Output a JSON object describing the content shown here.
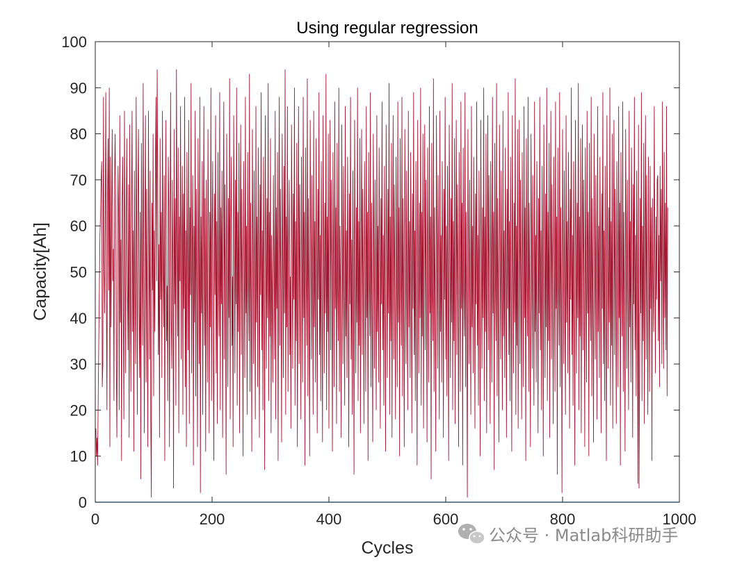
{
  "chart_data": {
    "type": "line",
    "title": "Using regular regression",
    "xlabel": "Cycles",
    "ylabel": "Capacity[Ah]",
    "xlim": [
      0,
      1000
    ],
    "ylim": [
      0,
      100
    ],
    "xticks": [
      0,
      200,
      400,
      600,
      800,
      1000
    ],
    "yticks": [
      0,
      10,
      20,
      30,
      40,
      50,
      60,
      70,
      80,
      90,
      100
    ],
    "grid": false,
    "legend": "none",
    "series": [
      {
        "color": "#a2142f",
        "x_start": 1,
        "x_step": 1,
        "values": [
          16,
          10,
          14,
          8,
          22,
          35,
          46,
          58,
          62,
          70,
          74,
          25,
          30,
          88,
          52,
          41,
          60,
          89,
          45,
          20,
          67,
          79,
          46,
          90,
          12,
          75,
          38,
          62,
          81,
          48,
          55,
          22,
          70,
          80,
          66,
          30,
          14,
          51,
          73,
          62,
          20,
          84,
          39,
          57,
          9,
          66,
          75,
          42,
          18,
          85,
          56,
          28,
          62,
          79,
          47,
          33,
          69,
          14,
          82,
          50,
          24,
          64,
          85,
          37,
          59,
          11,
          72,
          46,
          30,
          88,
          55,
          19,
          66,
          81,
          41,
          27,
          63,
          5,
          78,
          52,
          34,
          91,
          49,
          15,
          60,
          84,
          26,
          68,
          40,
          12,
          85,
          57,
          31,
          72,
          18,
          1,
          65,
          46,
          80,
          23,
          59,
          37,
          74,
          88,
          48,
          94,
          70,
          32,
          56,
          14,
          79,
          44,
          63,
          27,
          85,
          52,
          38,
          71,
          9,
          60,
          83,
          35,
          47,
          22,
          75,
          64,
          12,
          57,
          89,
          40,
          29,
          70,
          51,
          3,
          81,
          43,
          66,
          21,
          94,
          58,
          36,
          77,
          15,
          62,
          48,
          86,
          31,
          54,
          73,
          19,
          67,
          42,
          88,
          25,
          59,
          12,
          76,
          50,
          33,
          83,
          17,
          64,
          45,
          91,
          28,
          55,
          71,
          8,
          60,
          39,
          85,
          23,
          68,
          47,
          12,
          79,
          53,
          30,
          88,
          2,
          62,
          41,
          74,
          19,
          57,
          86,
          34,
          66,
          11,
          70,
          48,
          26,
          81,
          55,
          15,
          63,
          38,
          90,
          22,
          58,
          74,
          33,
          9,
          67,
          45,
          84,
          28,
          61,
          17,
          76,
          50,
          36,
          89,
          20,
          64,
          43,
          72,
          14,
          58,
          87,
          31,
          69,
          47,
          6,
          80,
          53,
          25,
          66,
          40,
          92,
          18,
          61,
          75,
          34,
          49,
          12,
          84,
          57,
          28,
          70,
          43,
          90,
          21,
          63,
          37,
          78,
          15,
          56,
          82,
          32,
          68,
          46,
          10,
          74,
          52,
          27,
          88,
          41,
          60,
          19,
          76,
          49,
          35,
          93,
          24,
          65,
          44,
          11,
          81,
          56,
          30,
          72,
          47,
          18,
          86,
          39,
          62,
          25,
          77,
          51,
          14,
          69,
          45,
          89,
          33,
          59,
          20,
          75,
          48,
          7,
          84,
          55,
          29,
          66,
          40,
          91,
          22,
          63,
          36,
          79,
          15,
          58,
          45,
          26,
          71,
          52,
          31,
          85,
          18,
          64,
          42,
          76,
          9,
          57,
          88,
          34,
          68,
          47,
          13,
          80,
          53,
          27,
          73,
          41,
          94,
          19,
          62,
          38,
          86,
          24,
          55,
          70,
          32,
          49,
          16,
          82,
          58,
          29,
          67,
          44,
          90,
          21,
          61,
          35,
          78,
          12,
          54,
          86,
          30,
          69,
          46,
          18,
          75,
          52,
          26,
          88,
          40,
          63,
          8,
          77,
          50,
          34,
          92,
          23,
          66,
          43,
          10,
          83,
          57,
          31,
          71,
          48,
          19,
          85,
          38,
          61,
          26,
          79,
          53,
          15,
          68,
          44,
          89,
          32,
          58,
          22,
          74,
          47,
          13,
          84,
          54,
          28,
          65,
          41,
          93,
          20,
          62,
          37,
          80,
          16,
          56,
          83,
          33,
          70,
          49,
          11,
          76,
          51,
          25,
          87,
          42,
          64,
          17,
          78,
          46,
          35,
          90,
          24,
          60,
          45,
          14,
          82,
          55,
          30,
          73,
          48,
          21,
          86,
          36,
          59,
          27,
          75,
          50,
          12,
          67,
          43,
          88,
          31,
          57,
          19,
          72,
          46,
          6,
          83,
          52,
          28,
          64,
          39,
          90,
          22,
          61,
          34,
          79,
          15,
          55,
          81,
          32,
          68,
          47,
          17,
          74,
          51,
          24,
          86,
          40,
          63,
          9,
          76,
          48,
          36,
          89,
          25,
          65,
          42,
          13,
          80,
          56,
          29,
          70,
          45,
          20,
          84,
          37,
          60,
          26,
          77,
          53,
          16,
          66,
          43,
          87,
          33,
          58,
          21,
          73,
          47,
          11,
          82,
          54,
          27,
          68,
          41,
          91,
          19,
          62,
          35,
          78,
          14,
          57,
          84,
          31,
          69,
          46,
          18,
          75,
          50,
          25,
          87,
          39,
          64,
          10,
          79,
          49,
          34,
          88,
          23,
          66,
          44,
          12,
          81,
          55,
          30,
          72,
          48,
          20,
          85,
          38,
          61,
          27,
          76,
          52,
          15,
          67,
          42,
          89,
          32,
          59,
          22,
          74,
          46,
          8,
          83,
          53,
          28,
          65,
          40,
          90,
          21,
          63,
          36,
          80,
          16,
          56,
          82,
          33,
          70,
          47,
          13,
          77,
          51,
          26,
          86,
          41,
          62,
          5,
          78,
          45,
          35,
          92,
          24,
          64,
          43,
          11,
          84,
          57,
          29,
          71,
          49,
          18,
          85,
          37,
          58,
          26,
          74,
          52,
          14,
          68,
          44,
          88,
          31,
          60,
          23,
          73,
          47,
          9,
          82,
          55,
          27,
          66,
          39,
          91,
          20,
          61,
          35,
          79,
          17,
          54,
          83,
          32,
          69,
          48,
          12,
          76,
          50,
          24,
          87,
          42,
          65,
          8,
          77,
          46,
          36,
          89,
          25,
          63,
          41,
          1,
          81,
          56,
          30,
          70,
          45,
          19,
          86,
          38,
          60,
          28,
          75,
          53,
          16,
          67,
          43,
          87,
          34,
          58,
          21,
          72,
          48,
          10,
          83,
          54,
          29,
          64,
          40,
          90,
          22,
          62,
          37,
          80,
          15,
          57,
          84,
          33,
          71,
          46,
          17,
          74,
          51,
          26,
          88,
          41,
          63,
          7,
          78,
          49,
          35,
          91,
          23,
          66,
          44,
          13,
          82,
          55,
          31,
          72,
          47,
          20,
          85,
          36,
          59,
          27,
          77,
          52,
          14,
          68,
          42,
          89,
          32,
          61,
          22,
          75,
          46,
          11,
          84,
          53,
          28,
          65,
          39,
          92,
          19,
          60,
          34,
          81,
          16,
          55,
          83,
          30,
          70,
          48,
          18,
          76,
          50,
          25,
          86,
          40,
          64,
          9,
          79,
          47,
          36,
          88,
          24,
          65,
          43,
          12,
          80,
          57,
          29,
          71,
          45,
          21,
          87,
          37,
          58,
          26,
          74,
          51,
          15,
          66,
          41,
          88,
          33,
          59,
          20,
          73,
          49,
          10,
          82,
          54,
          27,
          67,
          38,
          90,
          22,
          63,
          35,
          78,
          14,
          56,
          85,
          31,
          69,
          47,
          17,
          75,
          52,
          24,
          87,
          42,
          62,
          6,
          77,
          48,
          34,
          89,
          25,
          64,
          45,
          2,
          81,
          55,
          30,
          72,
          46,
          19,
          84,
          39,
          61,
          28,
          76,
          53,
          16,
          68,
          44,
          90,
          32,
          58,
          21,
          74,
          47,
          8,
          83,
          56,
          28,
          65,
          40,
          91,
          20,
          62,
          36,
          79,
          15,
          57,
          82,
          33,
          70,
          49,
          12,
          77,
          50,
          26,
          85,
          41,
          63,
          10,
          78,
          46,
          35,
          88,
          23,
          66,
          43,
          13,
          80,
          54,
          31,
          71,
          48,
          18,
          86,
          37,
          60,
          27,
          75,
          52,
          15,
          67,
          42,
          89,
          30,
          59,
          22,
          73,
          45,
          9,
          84,
          55,
          29,
          64,
          39,
          90,
          21,
          61,
          34,
          80,
          16,
          56,
          83,
          32,
          68,
          47,
          17,
          74,
          51,
          25,
          86,
          40,
          65,
          8,
          76,
          48,
          36,
          87,
          24,
          63,
          44,
          11,
          81,
          57,
          29,
          70,
          46,
          20,
          85,
          38,
          61,
          26,
          77,
          53,
          14,
          69,
          43,
          88,
          33,
          58,
          23,
          72,
          49,
          4,
          82,
          3,
          28,
          66,
          41,
          89,
          22,
          60,
          35,
          78,
          17,
          55,
          84,
          31,
          71,
          46,
          19,
          75,
          50,
          24,
          73,
          42,
          64,
          9,
          66,
          47,
          37,
          86,
          54,
          28,
          62,
          44,
          70,
          71,
          35,
          58,
          25,
          73,
          48,
          68,
          30,
          87,
          52,
          29,
          76,
          40,
          65,
          33,
          86,
          23,
          64
        ]
      },
      {
        "color": "#4dbeee",
        "x": [
          0,
          1000
        ],
        "values": [
          0,
          0
        ]
      }
    ]
  },
  "watermark": {
    "text": "公众号 · Matlab科研助手",
    "icon": "wechat-icon"
  }
}
